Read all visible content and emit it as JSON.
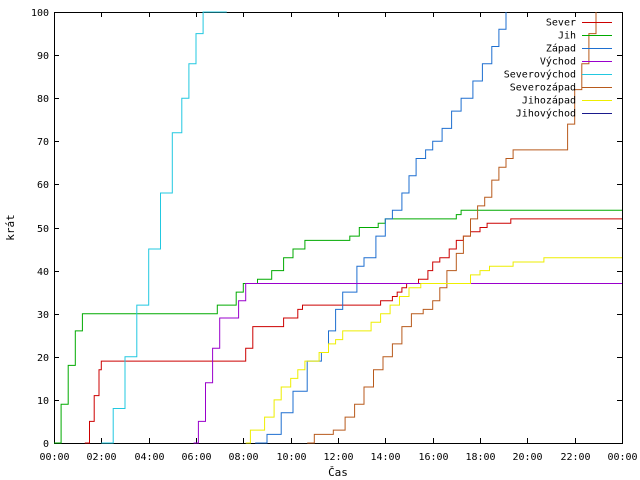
{
  "chart_data": {
    "type": "line",
    "title": "",
    "xlabel": "Čas",
    "ylabel": "krát",
    "xlim": [
      0,
      24
    ],
    "ylim": [
      0,
      100
    ],
    "grid": false,
    "legend_position": "top-right",
    "x_ticks": [
      0,
      2,
      4,
      6,
      8,
      10,
      12,
      14,
      16,
      18,
      20,
      22,
      24
    ],
    "x_tick_labels": [
      "00:00",
      "02:00",
      "04:00",
      "06:00",
      "08:00",
      "10:00",
      "12:00",
      "14:00",
      "16:00",
      "18:00",
      "20:00",
      "22:00",
      "00:00"
    ],
    "y_ticks": [
      0,
      10,
      20,
      30,
      40,
      50,
      60,
      70,
      80,
      90,
      100
    ],
    "y_tick_labels": [
      "0",
      "10",
      "20",
      "30",
      "40",
      "50",
      "60",
      "70",
      "80",
      "90",
      "100"
    ],
    "series": [
      {
        "name": "Sever",
        "color": "#cc0000",
        "points": [
          [
            1.3,
            0
          ],
          [
            1.5,
            5
          ],
          [
            1.7,
            11
          ],
          [
            1.9,
            17
          ],
          [
            2.0,
            19
          ],
          [
            8.0,
            19
          ],
          [
            8.1,
            22
          ],
          [
            8.3,
            22
          ],
          [
            8.4,
            27
          ],
          [
            9.5,
            27
          ],
          [
            9.7,
            29
          ],
          [
            10.1,
            29
          ],
          [
            10.3,
            31
          ],
          [
            10.5,
            32
          ],
          [
            13.6,
            32
          ],
          [
            13.8,
            33
          ],
          [
            14.3,
            34
          ],
          [
            14.5,
            35
          ],
          [
            14.7,
            36
          ],
          [
            14.9,
            37
          ],
          [
            15.2,
            37
          ],
          [
            15.4,
            38
          ],
          [
            15.8,
            40
          ],
          [
            16.0,
            42
          ],
          [
            16.3,
            43
          ],
          [
            16.7,
            45
          ],
          [
            17.0,
            47
          ],
          [
            17.3,
            48
          ],
          [
            17.6,
            49
          ],
          [
            18.0,
            50
          ],
          [
            18.3,
            51
          ],
          [
            19.0,
            51
          ],
          [
            19.3,
            52
          ],
          [
            24,
            52
          ]
        ]
      },
      {
        "name": "Jih",
        "color": "#00aa00",
        "points": [
          [
            0,
            0
          ],
          [
            0.3,
            9
          ],
          [
            0.6,
            18
          ],
          [
            0.9,
            26
          ],
          [
            1.2,
            30
          ],
          [
            6.5,
            30
          ],
          [
            6.9,
            32
          ],
          [
            7.5,
            32
          ],
          [
            7.7,
            35
          ],
          [
            8.0,
            37
          ],
          [
            8.6,
            38
          ],
          [
            9.2,
            40
          ],
          [
            9.7,
            43
          ],
          [
            10.1,
            45
          ],
          [
            10.6,
            47
          ],
          [
            12.3,
            47
          ],
          [
            12.5,
            48
          ],
          [
            12.9,
            50
          ],
          [
            13.7,
            51
          ],
          [
            14.0,
            52
          ],
          [
            17.0,
            53
          ],
          [
            17.2,
            54
          ],
          [
            24,
            54
          ]
        ]
      },
      {
        "name": "Západ",
        "color": "#1e6fd0",
        "points": [
          [
            8.5,
            0
          ],
          [
            9.0,
            2
          ],
          [
            9.6,
            7
          ],
          [
            10.1,
            12
          ],
          [
            10.7,
            19
          ],
          [
            11.0,
            19
          ],
          [
            11.3,
            21
          ],
          [
            11.6,
            26
          ],
          [
            11.9,
            31
          ],
          [
            12.2,
            35
          ],
          [
            12.8,
            41
          ],
          [
            13.1,
            43
          ],
          [
            13.6,
            48
          ],
          [
            14.0,
            52
          ],
          [
            14.3,
            54
          ],
          [
            14.7,
            58
          ],
          [
            15.0,
            62
          ],
          [
            15.3,
            66
          ],
          [
            15.7,
            68
          ],
          [
            16.0,
            70
          ],
          [
            16.4,
            73
          ],
          [
            16.8,
            77
          ],
          [
            17.2,
            80
          ],
          [
            17.7,
            84
          ],
          [
            18.1,
            88
          ],
          [
            18.5,
            92
          ],
          [
            18.8,
            96
          ],
          [
            19.1,
            100
          ]
        ]
      },
      {
        "name": "Východ",
        "color": "#9a00cc",
        "points": [
          [
            5.9,
            0
          ],
          [
            6.1,
            5
          ],
          [
            6.4,
            14
          ],
          [
            6.7,
            22
          ],
          [
            7.0,
            29
          ],
          [
            7.5,
            29
          ],
          [
            7.8,
            33
          ],
          [
            8.1,
            37
          ],
          [
            24,
            37
          ]
        ]
      },
      {
        "name": "Severovýchod",
        "color": "#22c8e0",
        "points": [
          [
            2.0,
            0
          ],
          [
            2.5,
            8
          ],
          [
            3.0,
            20
          ],
          [
            3.5,
            32
          ],
          [
            4.0,
            45
          ],
          [
            4.5,
            58
          ],
          [
            5.0,
            72
          ],
          [
            5.4,
            80
          ],
          [
            5.7,
            88
          ],
          [
            6.0,
            95
          ],
          [
            6.3,
            100
          ],
          [
            7.3,
            100
          ]
        ]
      },
      {
        "name": "Severozápad",
        "color": "#b85a1c",
        "points": [
          [
            10.7,
            0
          ],
          [
            11.0,
            2
          ],
          [
            11.5,
            2
          ],
          [
            11.8,
            3
          ],
          [
            12.3,
            6
          ],
          [
            12.7,
            9
          ],
          [
            13.1,
            13
          ],
          [
            13.5,
            17
          ],
          [
            13.9,
            20
          ],
          [
            14.3,
            23
          ],
          [
            14.7,
            27
          ],
          [
            15.1,
            30
          ],
          [
            15.6,
            31
          ],
          [
            16.0,
            33
          ],
          [
            16.3,
            36
          ],
          [
            16.6,
            40
          ],
          [
            17.0,
            44
          ],
          [
            17.3,
            48
          ],
          [
            17.6,
            52
          ],
          [
            17.9,
            55
          ],
          [
            18.2,
            57
          ],
          [
            18.5,
            61
          ],
          [
            18.8,
            64
          ],
          [
            19.1,
            66
          ],
          [
            19.4,
            68
          ],
          [
            21.5,
            68
          ],
          [
            21.7,
            74
          ],
          [
            22.0,
            82
          ],
          [
            22.3,
            88
          ],
          [
            22.6,
            95
          ],
          [
            22.9,
            100
          ]
        ]
      },
      {
        "name": "Jihozápad",
        "color": "#eeee00",
        "points": [
          [
            8.1,
            0
          ],
          [
            8.3,
            3
          ],
          [
            8.7,
            3
          ],
          [
            8.9,
            6
          ],
          [
            9.3,
            10
          ],
          [
            9.6,
            13
          ],
          [
            10.0,
            15
          ],
          [
            10.3,
            17
          ],
          [
            10.6,
            19
          ],
          [
            10.9,
            19
          ],
          [
            11.2,
            21
          ],
          [
            11.6,
            23
          ],
          [
            11.9,
            24
          ],
          [
            12.2,
            26
          ],
          [
            13.1,
            26
          ],
          [
            13.4,
            28
          ],
          [
            13.8,
            30
          ],
          [
            14.2,
            32
          ],
          [
            14.6,
            34
          ],
          [
            15.0,
            36
          ],
          [
            15.5,
            37
          ],
          [
            17.4,
            37
          ],
          [
            17.6,
            39
          ],
          [
            18.0,
            40
          ],
          [
            18.4,
            41
          ],
          [
            19.2,
            41
          ],
          [
            19.4,
            42
          ],
          [
            20.5,
            42
          ],
          [
            20.7,
            43
          ],
          [
            24,
            43
          ]
        ]
      },
      {
        "name": "Jihovýchod",
        "color": "#1a1a8c",
        "points": []
      }
    ]
  }
}
